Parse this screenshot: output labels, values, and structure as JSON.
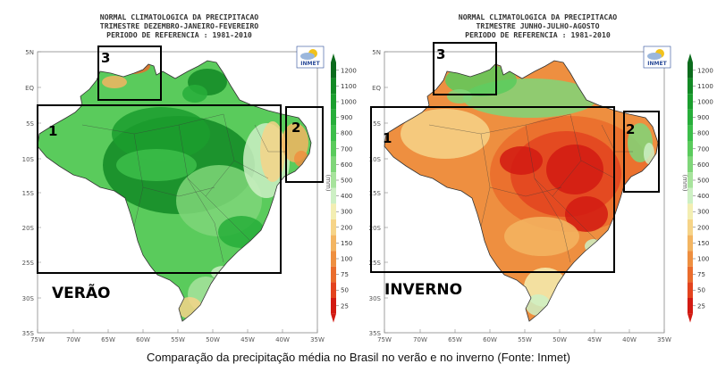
{
  "panels": [
    {
      "title_lines": [
        "NORMAL CLIMATOLOGICA DA PRECIPITACAO",
        "TRIMESTRE DEZEMBRO-JANEIRO-FEVEREIRO",
        "PERIODO DE REFERENCIA : 1981-2010"
      ],
      "season_label": "VERÃO",
      "logo_text": "INMET",
      "region_labels": [
        "1",
        "2",
        "3"
      ]
    },
    {
      "title_lines": [
        "NORMAL CLIMATOLOGICA DA PRECIPITACAO",
        "TRIMESTRE JUNHO-JULHO-AGOSTO",
        "PERIODO DE REFERENCIA : 1981-2010"
      ],
      "season_label": "INVERNO",
      "logo_text": "INMET",
      "region_labels": [
        "1",
        "2",
        "3"
      ]
    }
  ],
  "axes": {
    "lat_labels": [
      "5N",
      "EQ",
      "5S",
      "10S",
      "15S",
      "20S",
      "25S",
      "30S",
      "35S"
    ],
    "lon_labels": [
      "75W",
      "70W",
      "65W",
      "60W",
      "55W",
      "50W",
      "45W",
      "40W",
      "35W"
    ]
  },
  "legend": {
    "unit": "(mm)",
    "values": [
      "1200",
      "1100",
      "1000",
      "900",
      "800",
      "700",
      "600",
      "500",
      "400",
      "300",
      "200",
      "150",
      "100",
      "75",
      "50",
      "25"
    ],
    "colors": [
      "#0b6b1c",
      "#128a25",
      "#1b9e2e",
      "#27ae3a",
      "#3cbe4a",
      "#5acb5c",
      "#7fd679",
      "#a7e39c",
      "#cdf0c4",
      "#f3eeb2",
      "#f6d488",
      "#f3b562",
      "#ee8f40",
      "#ea6c2c",
      "#e3431e",
      "#d21a12"
    ]
  },
  "caption": "Comparação da precipitação média no Brasil no verão e no inverno (Fonte: Inmet)"
}
